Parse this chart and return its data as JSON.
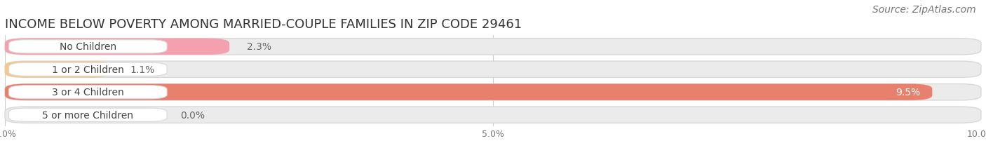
{
  "title": "INCOME BELOW POVERTY AMONG MARRIED-COUPLE FAMILIES IN ZIP CODE 29461",
  "source": "Source: ZipAtlas.com",
  "categories": [
    "No Children",
    "1 or 2 Children",
    "3 or 4 Children",
    "5 or more Children"
  ],
  "values": [
    2.3,
    1.1,
    9.5,
    0.0
  ],
  "bar_colors": [
    "#f5a0ae",
    "#f5c98a",
    "#e8806e",
    "#aec8ea"
  ],
  "xlim": [
    0,
    10.0
  ],
  "xticks": [
    0.0,
    5.0,
    10.0
  ],
  "xticklabels": [
    "0.0%",
    "5.0%",
    "10.0%"
  ],
  "background_color": "#ffffff",
  "bar_background_color": "#ebebeb",
  "bar_edge_color": "#d8d8d8",
  "title_fontsize": 13,
  "source_fontsize": 10,
  "label_fontsize": 10,
  "value_fontsize": 10
}
